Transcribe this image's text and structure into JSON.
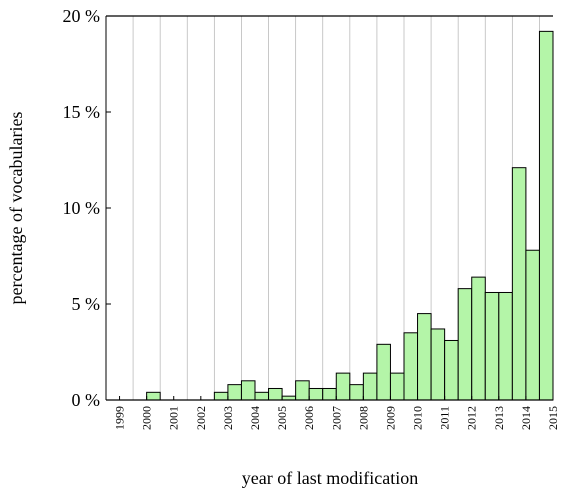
{
  "chart_data": {
    "type": "histogram",
    "xlabel": "year of last modification",
    "ylabel": "percentage of vocabularies",
    "bins": [
      1999,
      1999.5,
      2000,
      2000.5,
      2001,
      2001.5,
      2002,
      2002.5,
      2003,
      2003.5,
      2004,
      2004.5,
      2005,
      2005.5,
      2006,
      2006.5,
      2007,
      2007.5,
      2008,
      2008.5,
      2009,
      2009.5,
      2010,
      2010.5,
      2011,
      2011.5,
      2012,
      2012.5,
      2013,
      2013.5,
      2014,
      2014.5,
      2015,
      2015.5
    ],
    "values": [
      0,
      0,
      0,
      0.4,
      0,
      0,
      0,
      0,
      0.4,
      0.8,
      1.0,
      0.4,
      0.6,
      0.2,
      1.0,
      0.6,
      0.6,
      1.4,
      0.8,
      1.4,
      2.9,
      1.4,
      3.5,
      4.5,
      3.7,
      3.1,
      5.8,
      6.4,
      5.6,
      5.6,
      12.1,
      7.8,
      19.2
    ],
    "color": "#b4f5a8",
    "xlim": [
      1999,
      2015.5
    ],
    "xticks": [
      {
        "value": 1999.5,
        "label": "1999"
      },
      {
        "value": 2000.5,
        "label": "2000"
      },
      {
        "value": 2001.5,
        "label": "2001"
      },
      {
        "value": 2002.5,
        "label": "2002"
      },
      {
        "value": 2003.5,
        "label": "2003"
      },
      {
        "value": 2004.5,
        "label": "2004"
      },
      {
        "value": 2005.5,
        "label": "2005"
      },
      {
        "value": 2006.5,
        "label": "2006"
      },
      {
        "value": 2007.5,
        "label": "2007"
      },
      {
        "value": 2008.5,
        "label": "2008"
      },
      {
        "value": 2009.5,
        "label": "2009"
      },
      {
        "value": 2010.5,
        "label": "2010"
      },
      {
        "value": 2011.5,
        "label": "2011"
      },
      {
        "value": 2012.5,
        "label": "2012"
      },
      {
        "value": 2013.5,
        "label": "2013"
      },
      {
        "value": 2014.5,
        "label": "2014"
      },
      {
        "value": 2015.5,
        "label": "2015"
      }
    ],
    "ylim": [
      0,
      20
    ],
    "yticks": [
      {
        "value": 0,
        "label": "0 %"
      },
      {
        "value": 5,
        "label": "5 %"
      },
      {
        "value": 10,
        "label": "10 %"
      },
      {
        "value": 15,
        "label": "15 %"
      },
      {
        "value": 20,
        "label": "20 %"
      }
    ],
    "grid": true
  }
}
